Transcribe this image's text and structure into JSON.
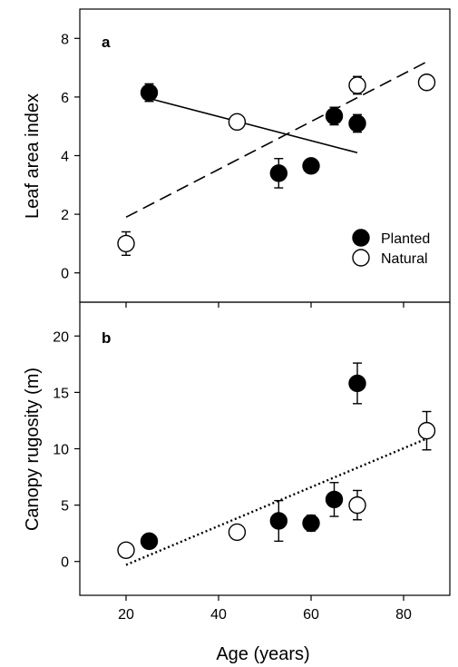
{
  "chart_data": [
    {
      "type": "scatter",
      "panel_label": "a",
      "ylabel": "Leaf area index",
      "xlim": [
        10,
        90
      ],
      "ylim": [
        -1,
        9
      ],
      "x_ticks": [
        20,
        40,
        60,
        80
      ],
      "y_ticks": [
        0,
        2,
        4,
        6,
        8
      ],
      "series": [
        {
          "name": "Planted",
          "marker": "filled-circle",
          "points": [
            {
              "x": 25,
              "y": 6.15,
              "err": 0.3
            },
            {
              "x": 53,
              "y": 3.4,
              "err": 0.5
            },
            {
              "x": 60,
              "y": 3.65,
              "err": 0.2
            },
            {
              "x": 65,
              "y": 5.35,
              "err": 0.3
            },
            {
              "x": 70,
              "y": 5.1,
              "err": 0.3
            }
          ],
          "fit": {
            "style": "solid",
            "x": [
              25,
              70
            ],
            "y": [
              5.95,
              4.1
            ]
          }
        },
        {
          "name": "Natural",
          "marker": "open-circle",
          "points": [
            {
              "x": 20,
              "y": 1.0,
              "err": 0.4
            },
            {
              "x": 44,
              "y": 5.15,
              "err": 0.0
            },
            {
              "x": 70,
              "y": 6.4,
              "err": 0.3
            },
            {
              "x": 85,
              "y": 6.5,
              "err": 0.0
            }
          ],
          "fit": {
            "style": "dashed",
            "x": [
              20,
              85
            ],
            "y": [
              1.9,
              7.2
            ]
          }
        }
      ],
      "legend": {
        "position": "bottom-right",
        "entries": [
          "Planted",
          "Natural"
        ]
      }
    },
    {
      "type": "scatter",
      "panel_label": "b",
      "xlabel": "Age (years)",
      "ylabel": "Canopy rugosity (m)",
      "xlim": [
        10,
        90
      ],
      "ylim": [
        -3,
        23
      ],
      "x_ticks": [
        20,
        40,
        60,
        80
      ],
      "y_ticks": [
        0,
        5,
        10,
        15,
        20
      ],
      "series": [
        {
          "name": "Planted",
          "marker": "filled-circle",
          "points": [
            {
              "x": 25,
              "y": 1.8,
              "err": 0.0
            },
            {
              "x": 53,
              "y": 3.6,
              "err": 1.8
            },
            {
              "x": 60,
              "y": 3.4,
              "err": 0.7
            },
            {
              "x": 65,
              "y": 5.5,
              "err": 1.5
            },
            {
              "x": 70,
              "y": 15.8,
              "err": 1.8
            }
          ]
        },
        {
          "name": "Natural",
          "marker": "open-circle",
          "points": [
            {
              "x": 20,
              "y": 1.0,
              "err": 0.0
            },
            {
              "x": 44,
              "y": 2.6,
              "err": 0.0
            },
            {
              "x": 70,
              "y": 5.0,
              "err": 1.3
            },
            {
              "x": 85,
              "y": 11.6,
              "err": 1.7
            }
          ]
        }
      ],
      "fit": {
        "style": "dotted",
        "x": [
          20,
          85
        ],
        "y": [
          -0.3,
          10.9
        ]
      }
    }
  ]
}
